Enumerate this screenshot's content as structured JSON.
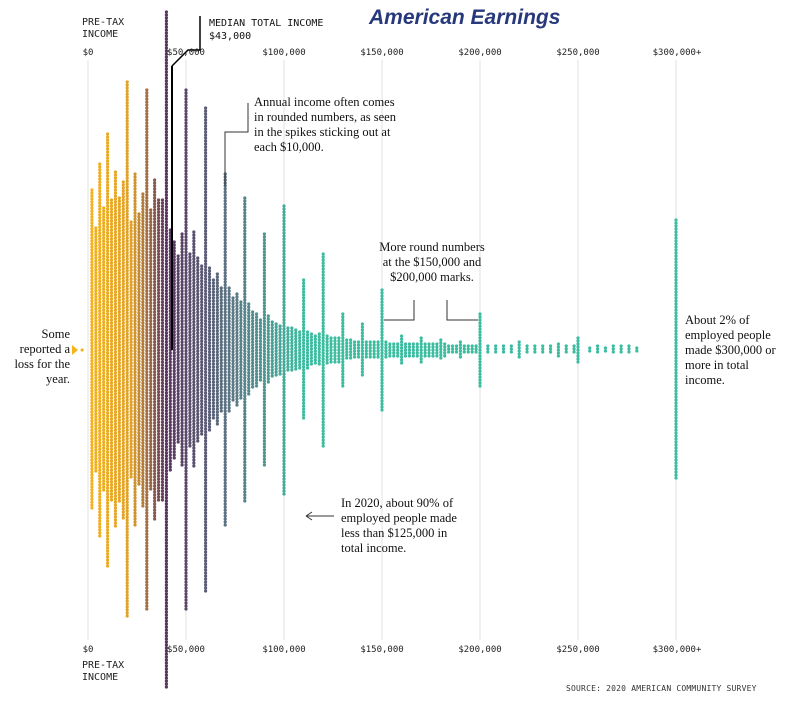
{
  "title": "American Earnings",
  "axis": {
    "title_top": "PRE-TAX\nINCOME",
    "title_bottom": "PRE-TAX\nINCOME",
    "tick_labels": [
      "$0",
      "$50,000",
      "$100,000",
      "$150,000",
      "$200,000",
      "$250,000",
      "$300,000+"
    ]
  },
  "median": {
    "label": "MEDIAN TOTAL INCOME",
    "value": "$43,000"
  },
  "annotations": {
    "rounded": "Annual income often comes in rounded numbers, as seen in the spikes sticking out at each $10,000.",
    "round_marks": "More round numbers at the $150,000 and $200,000 marks.",
    "loss": "Some reported a loss for the year.",
    "top_earners": "About 2% of employed people made $300,000 or more in total income.",
    "ninety_pct": "In 2020, about 90% of employed people made less than $125,000 in total income."
  },
  "source": "SOURCE: 2020 AMERICAN COMMUNITY SURVEY",
  "colors": {
    "low_income": "#f5b41e",
    "mid_income": "#5a3560",
    "high_income": "#3dbda0",
    "title": "#27397a",
    "grid": "#e2e2e2"
  },
  "chart_data": {
    "type": "scatter",
    "subtype": "beeswarm",
    "x_unit": "pre-tax income (USD)",
    "xlim": [
      0,
      300000
    ],
    "xticks": [
      0,
      50000,
      100000,
      150000,
      200000,
      250000,
      300000
    ],
    "median_income": 43000,
    "spikes": [
      {
        "x": -3000,
        "half": 0
      },
      {
        "x": 2000,
        "half": 160
      },
      {
        "x": 4000,
        "half": 122
      },
      {
        "x": 6000,
        "half": 186
      },
      {
        "x": 8000,
        "half": 142
      },
      {
        "x": 10000,
        "half": 216
      },
      {
        "x": 12000,
        "half": 150
      },
      {
        "x": 14000,
        "half": 178
      },
      {
        "x": 16000,
        "half": 152
      },
      {
        "x": 18000,
        "half": 168
      },
      {
        "x": 20000,
        "half": 268
      },
      {
        "x": 22000,
        "half": 128
      },
      {
        "x": 24000,
        "half": 176
      },
      {
        "x": 26000,
        "half": 136
      },
      {
        "x": 28000,
        "half": 156
      },
      {
        "x": 30000,
        "half": 260
      },
      {
        "x": 32000,
        "half": 140
      },
      {
        "x": 34000,
        "half": 170
      },
      {
        "x": 36000,
        "half": 150
      },
      {
        "x": 38000,
        "half": 150
      },
      {
        "x": 40000,
        "half": 338
      },
      {
        "x": 42000,
        "half": 120
      },
      {
        "x": 44000,
        "half": 108
      },
      {
        "x": 46000,
        "half": 94
      },
      {
        "x": 48000,
        "half": 116
      },
      {
        "x": 50000,
        "half": 260
      },
      {
        "x": 52000,
        "half": 96
      },
      {
        "x": 54000,
        "half": 118
      },
      {
        "x": 56000,
        "half": 92
      },
      {
        "x": 58000,
        "half": 84
      },
      {
        "x": 60000,
        "half": 242
      },
      {
        "x": 62000,
        "half": 82
      },
      {
        "x": 64000,
        "half": 70
      },
      {
        "x": 66000,
        "half": 76
      },
      {
        "x": 68000,
        "half": 62
      },
      {
        "x": 70000,
        "half": 176
      },
      {
        "x": 72000,
        "half": 62
      },
      {
        "x": 74000,
        "half": 52
      },
      {
        "x": 76000,
        "half": 56
      },
      {
        "x": 78000,
        "half": 48
      },
      {
        "x": 80000,
        "half": 152
      },
      {
        "x": 82000,
        "half": 46
      },
      {
        "x": 84000,
        "half": 38
      },
      {
        "x": 86000,
        "half": 36
      },
      {
        "x": 88000,
        "half": 30
      },
      {
        "x": 90000,
        "half": 116
      },
      {
        "x": 92000,
        "half": 34
      },
      {
        "x": 94000,
        "half": 28
      },
      {
        "x": 96000,
        "half": 26
      },
      {
        "x": 98000,
        "half": 24
      },
      {
        "x": 100000,
        "half": 144
      },
      {
        "x": 102000,
        "half": 22
      },
      {
        "x": 104000,
        "half": 22
      },
      {
        "x": 106000,
        "half": 20
      },
      {
        "x": 108000,
        "half": 18
      },
      {
        "x": 110000,
        "half": 70
      },
      {
        "x": 112000,
        "half": 18
      },
      {
        "x": 114000,
        "half": 16
      },
      {
        "x": 116000,
        "half": 14
      },
      {
        "x": 118000,
        "half": 16
      },
      {
        "x": 120000,
        "half": 96
      },
      {
        "x": 122000,
        "half": 14
      },
      {
        "x": 124000,
        "half": 12
      },
      {
        "x": 126000,
        "half": 12
      },
      {
        "x": 128000,
        "half": 12
      },
      {
        "x": 130000,
        "half": 36
      },
      {
        "x": 132000,
        "half": 10
      },
      {
        "x": 134000,
        "half": 10
      },
      {
        "x": 136000,
        "half": 8
      },
      {
        "x": 138000,
        "half": 8
      },
      {
        "x": 140000,
        "half": 26
      },
      {
        "x": 142000,
        "half": 8
      },
      {
        "x": 144000,
        "half": 8
      },
      {
        "x": 146000,
        "half": 8
      },
      {
        "x": 148000,
        "half": 8
      },
      {
        "x": 150000,
        "half": 60
      },
      {
        "x": 152000,
        "half": 8
      },
      {
        "x": 154000,
        "half": 6
      },
      {
        "x": 156000,
        "half": 6
      },
      {
        "x": 158000,
        "half": 6
      },
      {
        "x": 160000,
        "half": 14
      },
      {
        "x": 162000,
        "half": 6
      },
      {
        "x": 164000,
        "half": 6
      },
      {
        "x": 166000,
        "half": 6
      },
      {
        "x": 168000,
        "half": 6
      },
      {
        "x": 170000,
        "half": 12
      },
      {
        "x": 172000,
        "half": 6
      },
      {
        "x": 174000,
        "half": 6
      },
      {
        "x": 176000,
        "half": 6
      },
      {
        "x": 178000,
        "half": 6
      },
      {
        "x": 180000,
        "half": 10
      },
      {
        "x": 182000,
        "half": 6
      },
      {
        "x": 184000,
        "half": 4
      },
      {
        "x": 186000,
        "half": 4
      },
      {
        "x": 188000,
        "half": 4
      },
      {
        "x": 190000,
        "half": 8
      },
      {
        "x": 192000,
        "half": 4
      },
      {
        "x": 194000,
        "half": 4
      },
      {
        "x": 196000,
        "half": 4
      },
      {
        "x": 198000,
        "half": 4
      },
      {
        "x": 200000,
        "half": 36
      },
      {
        "x": 204000,
        "half": 4
      },
      {
        "x": 208000,
        "half": 4
      },
      {
        "x": 212000,
        "half": 4
      },
      {
        "x": 216000,
        "half": 4
      },
      {
        "x": 220000,
        "half": 8
      },
      {
        "x": 224000,
        "half": 4
      },
      {
        "x": 228000,
        "half": 4
      },
      {
        "x": 232000,
        "half": 4
      },
      {
        "x": 236000,
        "half": 4
      },
      {
        "x": 240000,
        "half": 6
      },
      {
        "x": 244000,
        "half": 4
      },
      {
        "x": 248000,
        "half": 4
      },
      {
        "x": 250000,
        "half": 12
      },
      {
        "x": 256000,
        "half": 2
      },
      {
        "x": 260000,
        "half": 4
      },
      {
        "x": 264000,
        "half": 2
      },
      {
        "x": 268000,
        "half": 4
      },
      {
        "x": 272000,
        "half": 4
      },
      {
        "x": 276000,
        "half": 4
      },
      {
        "x": 280000,
        "half": 2
      },
      {
        "x": 300000,
        "half": 130
      }
    ]
  }
}
